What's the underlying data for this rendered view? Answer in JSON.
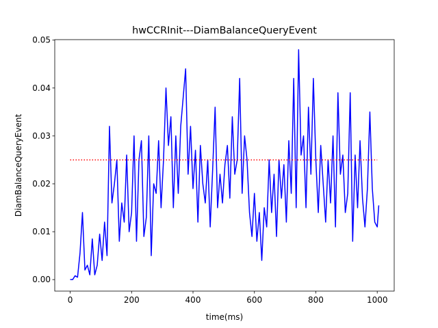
{
  "chart_data": {
    "type": "line",
    "title": "hwCCRInit---DiamBalanceQueryEvent",
    "x_label": "time(ms)",
    "y_label": "DiamBalanceQueryEvent",
    "xlim": [
      -50.25,
      1055.25
    ],
    "ylim": [
      -0.0024,
      0.0501
    ],
    "xticks": [
      0,
      200,
      400,
      600,
      800,
      1000
    ],
    "yticks": [
      {
        "value": 0,
        "label": "0.00"
      },
      {
        "value": 0.01,
        "label": "0.01"
      },
      {
        "value": 0.02,
        "label": "0.02"
      },
      {
        "value": 0.03,
        "label": "0.03"
      },
      {
        "value": 0.04,
        "label": "0.04"
      },
      {
        "value": 0.05,
        "label": "0.05"
      }
    ],
    "series": [
      {
        "color": "#0000ff",
        "style": "solid",
        "x": [
          0,
          8,
          16,
          24,
          32,
          40,
          48,
          56,
          64,
          72,
          80,
          88,
          96,
          104,
          112,
          120,
          128,
          136,
          144,
          152,
          160,
          168,
          176,
          184,
          192,
          200,
          208,
          216,
          224,
          232,
          240,
          248,
          256,
          264,
          272,
          280,
          288,
          296,
          304,
          312,
          320,
          328,
          336,
          344,
          352,
          360,
          368,
          376,
          384,
          392,
          400,
          408,
          416,
          424,
          432,
          440,
          448,
          456,
          464,
          472,
          480,
          488,
          496,
          504,
          512,
          520,
          528,
          536,
          544,
          552,
          560,
          568,
          576,
          584,
          592,
          600,
          608,
          616,
          624,
          632,
          640,
          648,
          656,
          664,
          672,
          680,
          688,
          696,
          704,
          712,
          720,
          728,
          736,
          744,
          752,
          760,
          768,
          776,
          784,
          792,
          800,
          808,
          816,
          824,
          832,
          840,
          848,
          856,
          864,
          872,
          880,
          888,
          896,
          904,
          912,
          920,
          928,
          936,
          944,
          952,
          960,
          968,
          976,
          984,
          992,
          1000,
          1005
        ],
        "values": [
          0,
          0,
          0.0008,
          0.0005,
          0.0055,
          0.014,
          0.002,
          0.003,
          0.001,
          0.0085,
          0.001,
          0.003,
          0.0095,
          0.004,
          0.012,
          0.005,
          0.032,
          0.016,
          0.02,
          0.025,
          0.008,
          0.016,
          0.012,
          0.026,
          0.01,
          0.014,
          0.03,
          0.008,
          0.025,
          0.029,
          0.009,
          0.013,
          0.03,
          0.005,
          0.02,
          0.018,
          0.029,
          0.015,
          0.025,
          0.04,
          0.028,
          0.034,
          0.015,
          0.03,
          0.018,
          0.032,
          0.038,
          0.044,
          0.022,
          0.032,
          0.019,
          0.027,
          0.012,
          0.028,
          0.02,
          0.016,
          0.025,
          0.011,
          0.023,
          0.036,
          0.015,
          0.022,
          0.016,
          0.024,
          0.028,
          0.017,
          0.034,
          0.022,
          0.025,
          0.042,
          0.018,
          0.03,
          0.025,
          0.014,
          0.009,
          0.018,
          0.008,
          0.014,
          0.004,
          0.015,
          0.011,
          0.025,
          0.014,
          0.022,
          0.009,
          0.025,
          0.017,
          0.024,
          0.012,
          0.029,
          0.018,
          0.042,
          0.015,
          0.048,
          0.026,
          0.03,
          0.015,
          0.036,
          0.022,
          0.042,
          0.025,
          0.014,
          0.028,
          0.02,
          0.012,
          0.025,
          0.016,
          0.03,
          0.011,
          0.039,
          0.022,
          0.026,
          0.014,
          0.018,
          0.039,
          0.008,
          0.026,
          0.015,
          0.029,
          0.017,
          0.011,
          0.019,
          0.035,
          0.019,
          0.012,
          0.011,
          0.0155
        ]
      },
      {
        "color": "#ff0000",
        "style": "dotted",
        "x": [
          0,
          1000
        ],
        "values": [
          0.025,
          0.025
        ]
      }
    ]
  }
}
